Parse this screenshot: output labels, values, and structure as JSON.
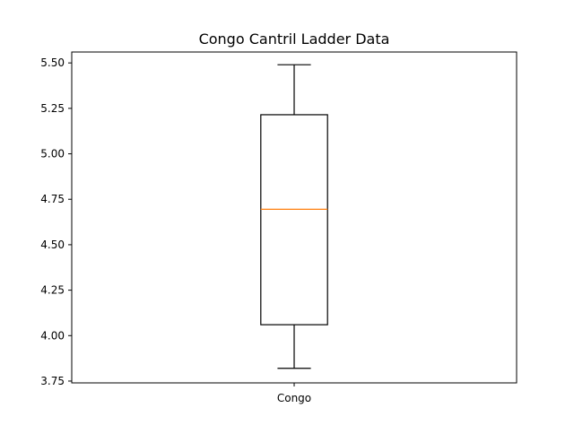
{
  "chart_data": {
    "type": "box",
    "title": "Congo Cantril Ladder Data",
    "xlabel": "",
    "ylabel": "",
    "categories": [
      "Congo"
    ],
    "boxes": [
      {
        "category": "Congo",
        "whisker_low": 3.82,
        "q1": 4.06,
        "median": 4.695,
        "q3": 5.215,
        "whisker_high": 5.49
      }
    ],
    "ylim": [
      3.74,
      5.56
    ],
    "yticks": [
      3.75,
      4.0,
      4.25,
      4.5,
      4.75,
      5.0,
      5.25,
      5.5
    ],
    "ytick_labels": [
      "3.75",
      "4.00",
      "4.25",
      "4.50",
      "4.75",
      "5.00",
      "5.25",
      "5.50"
    ],
    "grid": false,
    "colors": {
      "box": "#000000",
      "median": "#ff7f0e",
      "whisker": "#000000",
      "axes": "#000000",
      "background": "#ffffff"
    }
  }
}
